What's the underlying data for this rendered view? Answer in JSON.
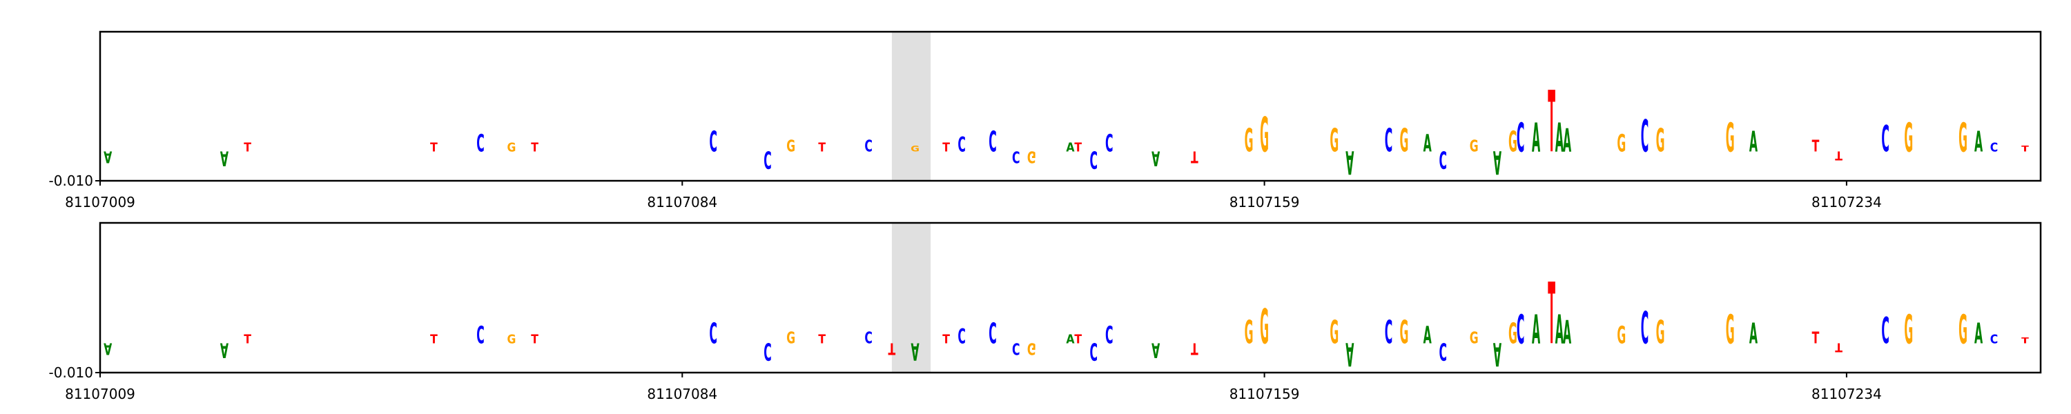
{
  "chart_data": [
    {
      "type": "logo",
      "xlim": [
        81107009,
        81107259
      ],
      "xticks": [
        81107009,
        81107084,
        81107159,
        81107234
      ],
      "ylim": [
        -0.01,
        0.041
      ],
      "yticks": [
        {
          "value": -0.01,
          "label": "-0.010"
        }
      ],
      "highlight": [
        81107111,
        81107116
      ],
      "colors": {
        "A": "#008000",
        "C": "#0000ff",
        "G": "#ffa500",
        "T": "#ff0000"
      },
      "positions": [
        81107010,
        81107025,
        81107028,
        81107052,
        81107058,
        81107062,
        81107065,
        81107088,
        81107095,
        81107098,
        81107102,
        81107108,
        81107114,
        81107118,
        81107120,
        81107124,
        81107127,
        81107129,
        81107134,
        81107135,
        81107137,
        81107139,
        81107145,
        81107150,
        81107157,
        81107159,
        81107168,
        81107170,
        81107175,
        81107177,
        81107180,
        81107182,
        81107186,
        81107189,
        81107191,
        81107192,
        81107194,
        81107196,
        81107197,
        81107198,
        81107205,
        81107208,
        81107210,
        81107219,
        81107222,
        81107230,
        81107233,
        81107239,
        81107242,
        81107249,
        81107251,
        81107253,
        81107257
      ],
      "letters": [
        "A",
        "A",
        "T",
        "T",
        "C",
        "G",
        "T",
        "C",
        "C",
        "G",
        "T",
        "C",
        "G",
        "T",
        "C",
        "C",
        "C",
        "G",
        "A",
        "T",
        "C",
        "C",
        "A",
        "T",
        "G",
        "G",
        "G",
        "A",
        "C",
        "G",
        "A",
        "C",
        "G",
        "A",
        "G",
        "C",
        "A",
        "T",
        "A",
        "A",
        "G",
        "C",
        "G",
        "G",
        "A",
        "T",
        "T",
        "C",
        "G",
        "G",
        "A",
        "C",
        "T"
      ],
      "values": [
        -0.004,
        -0.005,
        0.003,
        0.003,
        0.006,
        0.003,
        0.003,
        0.007,
        -0.006,
        0.004,
        0.003,
        0.004,
        0.002,
        0.003,
        0.005,
        0.007,
        -0.004,
        -0.004,
        0.003,
        0.003,
        -0.006,
        0.006,
        -0.005,
        -0.004,
        0.008,
        0.012,
        0.008,
        -0.008,
        0.008,
        0.008,
        0.006,
        -0.006,
        0.004,
        -0.008,
        0.007,
        0.01,
        0.01,
        0.021,
        0.01,
        0.008,
        0.006,
        0.011,
        0.008,
        0.01,
        0.007,
        0.004,
        -0.003,
        0.009,
        0.01,
        0.01,
        0.007,
        0.003,
        0.002
      ]
    },
    {
      "type": "logo",
      "xlim": [
        81107009,
        81107259
      ],
      "xticks": [
        81107009,
        81107084,
        81107159,
        81107234
      ],
      "ylim": [
        -0.01,
        0.041
      ],
      "yticks": [
        {
          "value": -0.01,
          "label": "-0.010"
        }
      ],
      "highlight": [
        81107111,
        81107116
      ],
      "colors": {
        "A": "#008000",
        "C": "#0000ff",
        "G": "#ffa500",
        "T": "#ff0000"
      },
      "positions": [
        81107010,
        81107025,
        81107028,
        81107052,
        81107058,
        81107062,
        81107065,
        81107088,
        81107095,
        81107098,
        81107102,
        81107108,
        81107111,
        81107114,
        81107118,
        81107120,
        81107124,
        81107127,
        81107129,
        81107134,
        81107135,
        81107137,
        81107139,
        81107145,
        81107150,
        81107157,
        81107159,
        81107168,
        81107170,
        81107175,
        81107177,
        81107180,
        81107182,
        81107186,
        81107189,
        81107191,
        81107192,
        81107194,
        81107196,
        81107197,
        81107198,
        81107205,
        81107208,
        81107210,
        81107219,
        81107222,
        81107230,
        81107233,
        81107239,
        81107242,
        81107249,
        81107251,
        81107253,
        81107257
      ],
      "letters": [
        "A",
        "A",
        "T",
        "T",
        "C",
        "G",
        "T",
        "C",
        "C",
        "G",
        "T",
        "C",
        "T",
        "A",
        "T",
        "C",
        "C",
        "C",
        "G",
        "A",
        "T",
        "C",
        "C",
        "A",
        "T",
        "G",
        "G",
        "G",
        "A",
        "C",
        "G",
        "A",
        "C",
        "G",
        "A",
        "G",
        "C",
        "A",
        "T",
        "A",
        "A",
        "G",
        "C",
        "G",
        "G",
        "A",
        "T",
        "T",
        "C",
        "G",
        "G",
        "A",
        "C",
        "T"
      ],
      "values": [
        -0.004,
        -0.005,
        0.003,
        0.003,
        0.006,
        0.003,
        0.003,
        0.007,
        -0.006,
        0.004,
        0.003,
        0.004,
        -0.004,
        -0.006,
        0.003,
        0.005,
        0.007,
        -0.004,
        -0.004,
        0.003,
        0.003,
        -0.006,
        0.006,
        -0.005,
        -0.004,
        0.008,
        0.012,
        0.008,
        -0.008,
        0.008,
        0.008,
        0.006,
        -0.006,
        0.004,
        -0.008,
        0.007,
        0.01,
        0.01,
        0.021,
        0.01,
        0.008,
        0.006,
        0.011,
        0.008,
        0.01,
        0.007,
        0.004,
        -0.003,
        0.009,
        0.01,
        0.01,
        0.007,
        0.003,
        0.002
      ]
    }
  ]
}
